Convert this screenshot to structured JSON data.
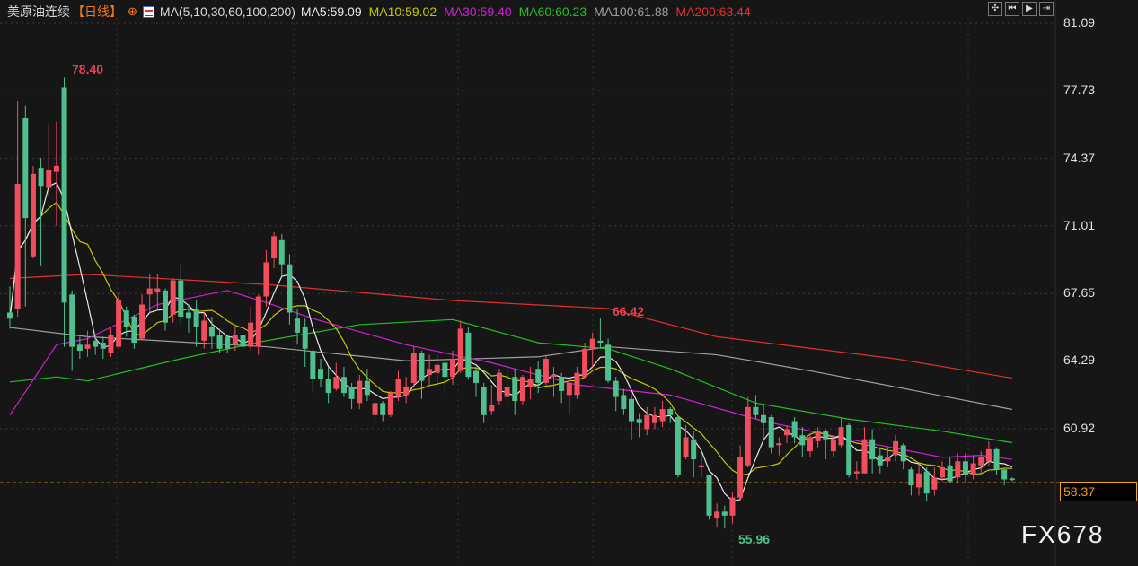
{
  "header": {
    "instrument": "美原油连续",
    "period": "【日线】",
    "settings_icon": "crosshair-circle-icon",
    "indicator": "MA(5,10,30,60,100,200)",
    "ma_values": [
      {
        "label": "MA5:59.09",
        "color": "#e8e8e8"
      },
      {
        "label": "MA10:59.02",
        "color": "#c8c800"
      },
      {
        "label": "MA30:59.40",
        "color": "#d020d0"
      },
      {
        "label": "MA60:60.23",
        "color": "#22c022"
      },
      {
        "label": "MA100:61.88",
        "color": "#a0a0a0"
      },
      {
        "label": "MA200:63.44",
        "color": "#e03030"
      }
    ]
  },
  "toolbar": {
    "icons": [
      "crosshair-icon",
      "step-back-icon",
      "play-icon",
      "exit-icon"
    ]
  },
  "watermark": "FX678",
  "chart_data": {
    "type": "candlestick",
    "y_ticks": [
      "81.09",
      "77.73",
      "74.37",
      "71.01",
      "67.65",
      "64.29",
      "60.92"
    ],
    "ylim": [
      55.0,
      81.09
    ],
    "current_price": "58.37",
    "annotations": {
      "high": "78.40",
      "mid_high": "66.42",
      "low": "55.96"
    },
    "colors": {
      "up": "#f04e5e",
      "down": "#4fc08d",
      "current_line": "#f0a020"
    },
    "ohlc": [
      [
        66.7,
        68.0,
        65.9,
        66.4
      ],
      [
        66.9,
        77.2,
        66.5,
        73.1
      ],
      [
        76.4,
        77.0,
        67.0,
        71.4
      ],
      [
        69.5,
        74.0,
        69.4,
        73.6
      ],
      [
        73.9,
        74.4,
        69.0,
        73.0
      ],
      [
        72.9,
        76.1,
        72.5,
        73.8
      ],
      [
        73.7,
        76.2,
        71.0,
        74.0
      ],
      [
        77.9,
        78.4,
        65.0,
        67.2
      ],
      [
        67.6,
        67.8,
        63.8,
        65.0
      ],
      [
        65.1,
        65.5,
        64.4,
        64.8
      ],
      [
        64.9,
        65.8,
        64.5,
        65.1
      ],
      [
        65.3,
        65.6,
        64.6,
        65.0
      ],
      [
        65.2,
        65.5,
        64.4,
        64.9
      ],
      [
        64.7,
        66.0,
        64.5,
        65.6
      ],
      [
        65.0,
        67.7,
        64.9,
        67.3
      ],
      [
        66.8,
        67.0,
        65.5,
        66.0
      ],
      [
        66.5,
        66.6,
        64.9,
        65.2
      ],
      [
        65.4,
        67.6,
        65.3,
        67.1
      ],
      [
        67.6,
        68.6,
        66.7,
        67.9
      ],
      [
        67.7,
        68.6,
        66.9,
        67.9
      ],
      [
        67.8,
        67.9,
        65.8,
        66.2
      ],
      [
        66.6,
        68.4,
        66.2,
        68.3
      ],
      [
        68.3,
        69.1,
        66.1,
        66.5
      ],
      [
        66.7,
        67.1,
        65.7,
        66.4
      ],
      [
        66.9,
        67.3,
        65.0,
        66.0
      ],
      [
        65.3,
        66.7,
        64.9,
        66.3
      ],
      [
        66.0,
        66.5,
        64.9,
        65.5
      ],
      [
        65.6,
        65.9,
        64.7,
        64.9
      ],
      [
        65.5,
        65.5,
        64.7,
        64.9
      ],
      [
        65.1,
        66.0,
        64.8,
        65.6
      ],
      [
        65.6,
        66.6,
        64.9,
        65.0
      ],
      [
        65.0,
        67.0,
        64.8,
        66.2
      ],
      [
        65.0,
        67.6,
        64.6,
        67.5
      ],
      [
        67.5,
        69.8,
        67.0,
        69.2
      ],
      [
        69.4,
        70.7,
        68.9,
        70.5
      ],
      [
        70.3,
        70.6,
        68.5,
        69.1
      ],
      [
        69.1,
        69.6,
        66.1,
        66.7
      ],
      [
        66.4,
        66.9,
        65.1,
        65.7
      ],
      [
        66.0,
        66.4,
        64.0,
        64.9
      ],
      [
        64.8,
        64.9,
        62.7,
        63.4
      ],
      [
        63.9,
        64.4,
        63.0,
        63.4
      ],
      [
        63.4,
        64.0,
        62.2,
        62.7
      ],
      [
        62.9,
        64.2,
        62.8,
        63.5
      ],
      [
        63.5,
        64.0,
        62.5,
        62.7
      ],
      [
        63.0,
        63.2,
        61.9,
        62.4
      ],
      [
        62.2,
        63.6,
        61.9,
        63.3
      ],
      [
        63.3,
        63.9,
        62.3,
        62.6
      ],
      [
        61.6,
        62.7,
        61.2,
        62.2
      ],
      [
        62.2,
        62.3,
        61.3,
        61.6
      ],
      [
        61.6,
        62.8,
        61.5,
        62.7
      ],
      [
        62.5,
        63.8,
        62.3,
        63.4
      ],
      [
        62.6,
        63.5,
        62.2,
        63.0
      ],
      [
        63.2,
        65.0,
        63.0,
        64.7
      ],
      [
        64.7,
        64.8,
        62.4,
        63.3
      ],
      [
        63.6,
        64.6,
        63.1,
        63.9
      ],
      [
        63.7,
        64.6,
        63.1,
        64.1
      ],
      [
        64.2,
        64.4,
        62.7,
        63.5
      ],
      [
        63.5,
        64.8,
        63.1,
        64.4
      ],
      [
        63.8,
        66.3,
        63.7,
        65.9
      ],
      [
        65.7,
        66.0,
        63.4,
        63.5
      ],
      [
        63.8,
        64.0,
        62.5,
        63.2
      ],
      [
        63.0,
        63.2,
        61.2,
        61.6
      ],
      [
        61.8,
        63.1,
        61.6,
        62.1
      ],
      [
        62.3,
        63.9,
        62.1,
        63.7
      ],
      [
        62.5,
        64.2,
        62.0,
        63.0
      ],
      [
        63.5,
        63.9,
        61.6,
        62.3
      ],
      [
        62.3,
        63.6,
        62.1,
        63.5
      ],
      [
        63.0,
        64.0,
        62.4,
        63.4
      ],
      [
        63.9,
        64.3,
        62.7,
        63.2
      ],
      [
        63.2,
        64.6,
        63.1,
        64.4
      ],
      [
        63.5,
        64.0,
        62.5,
        63.6
      ],
      [
        63.5,
        63.7,
        62.2,
        62.8
      ],
      [
        62.6,
        63.5,
        61.7,
        63.2
      ],
      [
        62.6,
        64.0,
        62.4,
        63.7
      ],
      [
        63.5,
        65.2,
        63.4,
        64.9
      ],
      [
        64.9,
        65.7,
        64.0,
        65.4
      ],
      [
        65.3,
        66.42,
        64.9,
        65.2
      ],
      [
        65.1,
        65.4,
        63.2,
        63.3
      ],
      [
        63.3,
        63.5,
        61.8,
        62.5
      ],
      [
        62.6,
        62.9,
        61.6,
        61.9
      ],
      [
        62.4,
        62.6,
        60.4,
        61.3
      ],
      [
        61.4,
        61.7,
        60.5,
        61.2
      ],
      [
        60.9,
        62.0,
        60.6,
        61.6
      ],
      [
        61.2,
        62.0,
        60.9,
        61.6
      ],
      [
        61.3,
        62.3,
        61.0,
        61.9
      ],
      [
        61.9,
        62.0,
        61.2,
        61.6
      ],
      [
        61.5,
        61.6,
        58.5,
        58.6
      ],
      [
        59.5,
        61.1,
        59.4,
        60.5
      ],
      [
        60.4,
        60.8,
        58.5,
        59.4
      ],
      [
        59.0,
        59.9,
        58.5,
        59.1
      ],
      [
        58.6,
        58.6,
        56.4,
        56.6
      ],
      [
        56.5,
        57.2,
        56.0,
        56.8
      ],
      [
        56.8,
        57.1,
        55.96,
        56.6
      ],
      [
        56.6,
        57.8,
        56.2,
        57.5
      ],
      [
        57.5,
        60.1,
        57.3,
        59.5
      ],
      [
        59.1,
        62.5,
        59.0,
        62.0
      ],
      [
        62.0,
        62.6,
        61.4,
        61.6
      ],
      [
        61.6,
        62.1,
        60.3,
        61.2
      ],
      [
        61.5,
        61.6,
        59.7,
        60.0
      ],
      [
        60.1,
        60.5,
        59.6,
        60.2
      ],
      [
        60.6,
        61.1,
        60.2,
        60.9
      ],
      [
        61.3,
        61.5,
        60.2,
        60.5
      ],
      [
        60.6,
        61.0,
        59.5,
        60.1
      ],
      [
        59.8,
        60.7,
        59.5,
        60.5
      ],
      [
        60.3,
        61.0,
        60.0,
        60.8
      ],
      [
        60.8,
        60.9,
        59.4,
        60.4
      ],
      [
        59.8,
        60.6,
        59.5,
        60.4
      ],
      [
        60.1,
        61.5,
        60.0,
        61.0
      ],
      [
        61.1,
        61.2,
        58.5,
        58.6
      ],
      [
        58.7,
        59.3,
        58.4,
        58.8
      ],
      [
        58.7,
        61.0,
        58.7,
        60.4
      ],
      [
        60.4,
        60.9,
        58.7,
        59.4
      ],
      [
        59.6,
        60.0,
        58.7,
        59.1
      ],
      [
        59.3,
        60.0,
        59.0,
        59.5
      ],
      [
        59.6,
        60.6,
        59.3,
        60.3
      ],
      [
        60.1,
        60.2,
        58.9,
        59.3
      ],
      [
        58.9,
        59.0,
        57.6,
        58.1
      ],
      [
        58.0,
        59.2,
        57.6,
        58.7
      ],
      [
        58.8,
        59.0,
        57.3,
        57.7
      ],
      [
        57.9,
        59.0,
        57.6,
        58.5
      ],
      [
        58.5,
        59.3,
        58.3,
        59.0
      ],
      [
        59.1,
        59.5,
        58.2,
        58.3
      ],
      [
        58.5,
        59.7,
        58.2,
        59.3
      ],
      [
        59.3,
        59.7,
        58.3,
        58.6
      ],
      [
        58.6,
        59.6,
        58.4,
        59.2
      ],
      [
        59.1,
        59.8,
        58.6,
        59.5
      ],
      [
        59.3,
        60.3,
        59.1,
        59.9
      ],
      [
        59.9,
        60.0,
        58.6,
        58.9
      ],
      [
        58.9,
        58.9,
        58.1,
        58.4
      ],
      [
        58.45,
        58.5,
        58.3,
        58.37
      ]
    ],
    "moving_averages": [
      {
        "name": "MA30",
        "color": "#d020d0",
        "points": [
          [
            0,
            61.6
          ],
          [
            6,
            65.1
          ],
          [
            10,
            65.4
          ],
          [
            19,
            67.1
          ],
          [
            28,
            67.8
          ],
          [
            33,
            67.2
          ],
          [
            39,
            66.4
          ],
          [
            51,
            65.1
          ],
          [
            62,
            64.2
          ],
          [
            73,
            63.1
          ],
          [
            85,
            62.6
          ],
          [
            97,
            61.3
          ],
          [
            108,
            60.4
          ],
          [
            120,
            59.5
          ],
          [
            125,
            59.6
          ],
          [
            129,
            59.4
          ]
        ]
      },
      {
        "name": "MA60",
        "color": "#22c022",
        "points": [
          [
            0,
            63.25
          ],
          [
            6,
            63.5
          ],
          [
            10,
            63.3
          ],
          [
            22,
            64.4
          ],
          [
            33,
            65.3
          ],
          [
            45,
            66.1
          ],
          [
            57,
            66.35
          ],
          [
            68,
            65.2
          ],
          [
            77,
            64.9
          ],
          [
            85,
            63.9
          ],
          [
            96,
            62.2
          ],
          [
            108,
            61.4
          ],
          [
            120,
            60.8
          ],
          [
            129,
            60.23
          ]
        ]
      },
      {
        "name": "MA100",
        "color": "#a0a0a0",
        "points": [
          [
            0,
            65.96
          ],
          [
            10,
            65.5
          ],
          [
            33,
            65.0
          ],
          [
            51,
            64.3
          ],
          [
            68,
            64.5
          ],
          [
            77,
            65.0
          ],
          [
            91,
            64.6
          ],
          [
            103,
            63.8
          ],
          [
            114,
            63.0
          ],
          [
            129,
            61.88
          ]
        ]
      },
      {
        "name": "MA200",
        "color": "#e03030",
        "points": [
          [
            0,
            68.4
          ],
          [
            10,
            68.6
          ],
          [
            33,
            68.1
          ],
          [
            57,
            67.3
          ],
          [
            77,
            66.9
          ],
          [
            91,
            65.5
          ],
          [
            114,
            64.4
          ],
          [
            129,
            63.44
          ]
        ]
      }
    ]
  }
}
